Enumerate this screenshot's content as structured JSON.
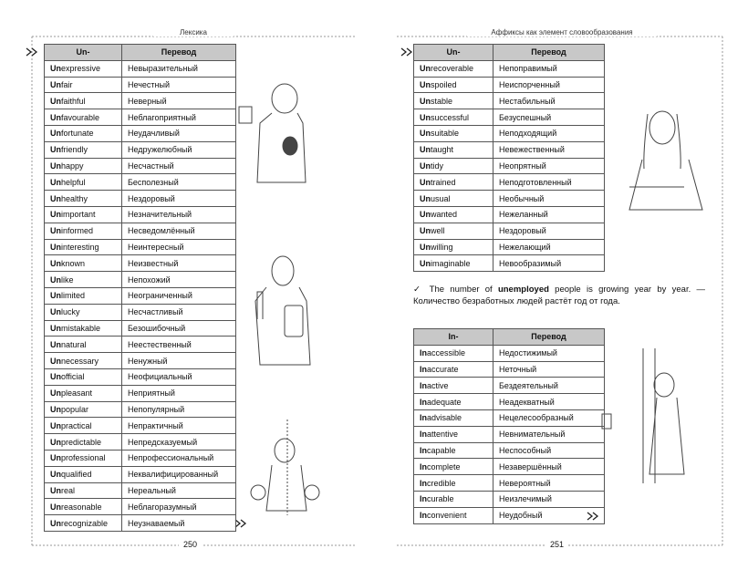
{
  "left_page": {
    "header": "Лексика",
    "page_number": "250",
    "table": {
      "columns": [
        "Un-",
        "Перевод"
      ],
      "rows": [
        [
          "Un",
          "expressive",
          "Невыразительный"
        ],
        [
          "Un",
          "fair",
          "Нечестный"
        ],
        [
          "Un",
          "faithful",
          "Неверный"
        ],
        [
          "Un",
          "favourable",
          "Неблагоприятный"
        ],
        [
          "Un",
          "fortunate",
          "Неудачливый"
        ],
        [
          "Un",
          "friendly",
          "Недружелюбный"
        ],
        [
          "Un",
          "happy",
          "Несчастный"
        ],
        [
          "Un",
          "helpful",
          "Бесполезный"
        ],
        [
          "Un",
          "healthy",
          "Нездоровый"
        ],
        [
          "Un",
          "important",
          "Незначительный"
        ],
        [
          "Un",
          "informed",
          "Несведомлённый"
        ],
        [
          "Un",
          "interesting",
          "Неинтересный"
        ],
        [
          "Un",
          "known",
          "Неизвестный"
        ],
        [
          "Un",
          "like",
          "Непохожий"
        ],
        [
          "Un",
          "limited",
          "Неограниченный"
        ],
        [
          "Un",
          "lucky",
          "Несчастливый"
        ],
        [
          "Un",
          "mistakable",
          "Безошибочный"
        ],
        [
          "Un",
          "natural",
          "Неестественный"
        ],
        [
          "Un",
          "necessary",
          "Ненужный"
        ],
        [
          "Un",
          "official",
          "Неофициальный"
        ],
        [
          "Un",
          "pleasant",
          "Неприятный"
        ],
        [
          "Un",
          "popular",
          "Непопулярный"
        ],
        [
          "Un",
          "practical",
          "Непрактичный"
        ],
        [
          "Un",
          "predictable",
          "Непредсказуемый"
        ],
        [
          "Un",
          "professional",
          "Непрофессиональный"
        ],
        [
          "Un",
          "qualified",
          "Неквалифицированный"
        ],
        [
          "Un",
          "real",
          "Нереальный"
        ],
        [
          "Un",
          "reasonable",
          "Неблагоразумный"
        ],
        [
          "Un",
          "recognizable",
          "Неузнаваемый"
        ]
      ]
    }
  },
  "right_page": {
    "header": "Аффиксы как элемент словообразования",
    "page_number": "251",
    "table1": {
      "columns": [
        "Un-",
        "Перевод"
      ],
      "rows": [
        [
          "Un",
          "recoverable",
          "Непоправимый"
        ],
        [
          "Un",
          "spoiled",
          "Неиспорченный"
        ],
        [
          "Un",
          "stable",
          "Нестабильный"
        ],
        [
          "Un",
          "successful",
          "Безуспешный"
        ],
        [
          "Un",
          "suitable",
          "Неподходящий"
        ],
        [
          "Un",
          "taught",
          "Невежественный"
        ],
        [
          "Un",
          "tidy",
          "Неопрятный"
        ],
        [
          "Un",
          "trained",
          "Неподготовленный"
        ],
        [
          "Un",
          "usual",
          "Необычный"
        ],
        [
          "Un",
          "wanted",
          "Нежеланный"
        ],
        [
          "Un",
          "well",
          "Нездоровый"
        ],
        [
          "Un",
          "willing",
          "Нежелающий"
        ],
        [
          "Un",
          "imaginable",
          "Невообразимый"
        ]
      ]
    },
    "note": {
      "before": "The number of ",
      "bold": "unemployed",
      "after": " people is growing year by year. — Количество безработных людей растёт год от года."
    },
    "table2": {
      "columns": [
        "In-",
        "Перевод"
      ],
      "rows": [
        [
          "In",
          "accessible",
          "Недостижимый"
        ],
        [
          "In",
          "accurate",
          "Неточный"
        ],
        [
          "In",
          "active",
          "Бездеятельный"
        ],
        [
          "In",
          "adequate",
          "Неадекватный"
        ],
        [
          "In",
          "advisable",
          "Нецелесообразный"
        ],
        [
          "In",
          "attentive",
          "Невнимательный"
        ],
        [
          "In",
          "capable",
          "Неспособный"
        ],
        [
          "In",
          "complete",
          "Незавершённый"
        ],
        [
          "In",
          "credible",
          "Невероятный"
        ],
        [
          "In",
          "curable",
          "Неизлечимый"
        ],
        [
          "In",
          "convenient",
          "Неудобный"
        ]
      ]
    }
  }
}
